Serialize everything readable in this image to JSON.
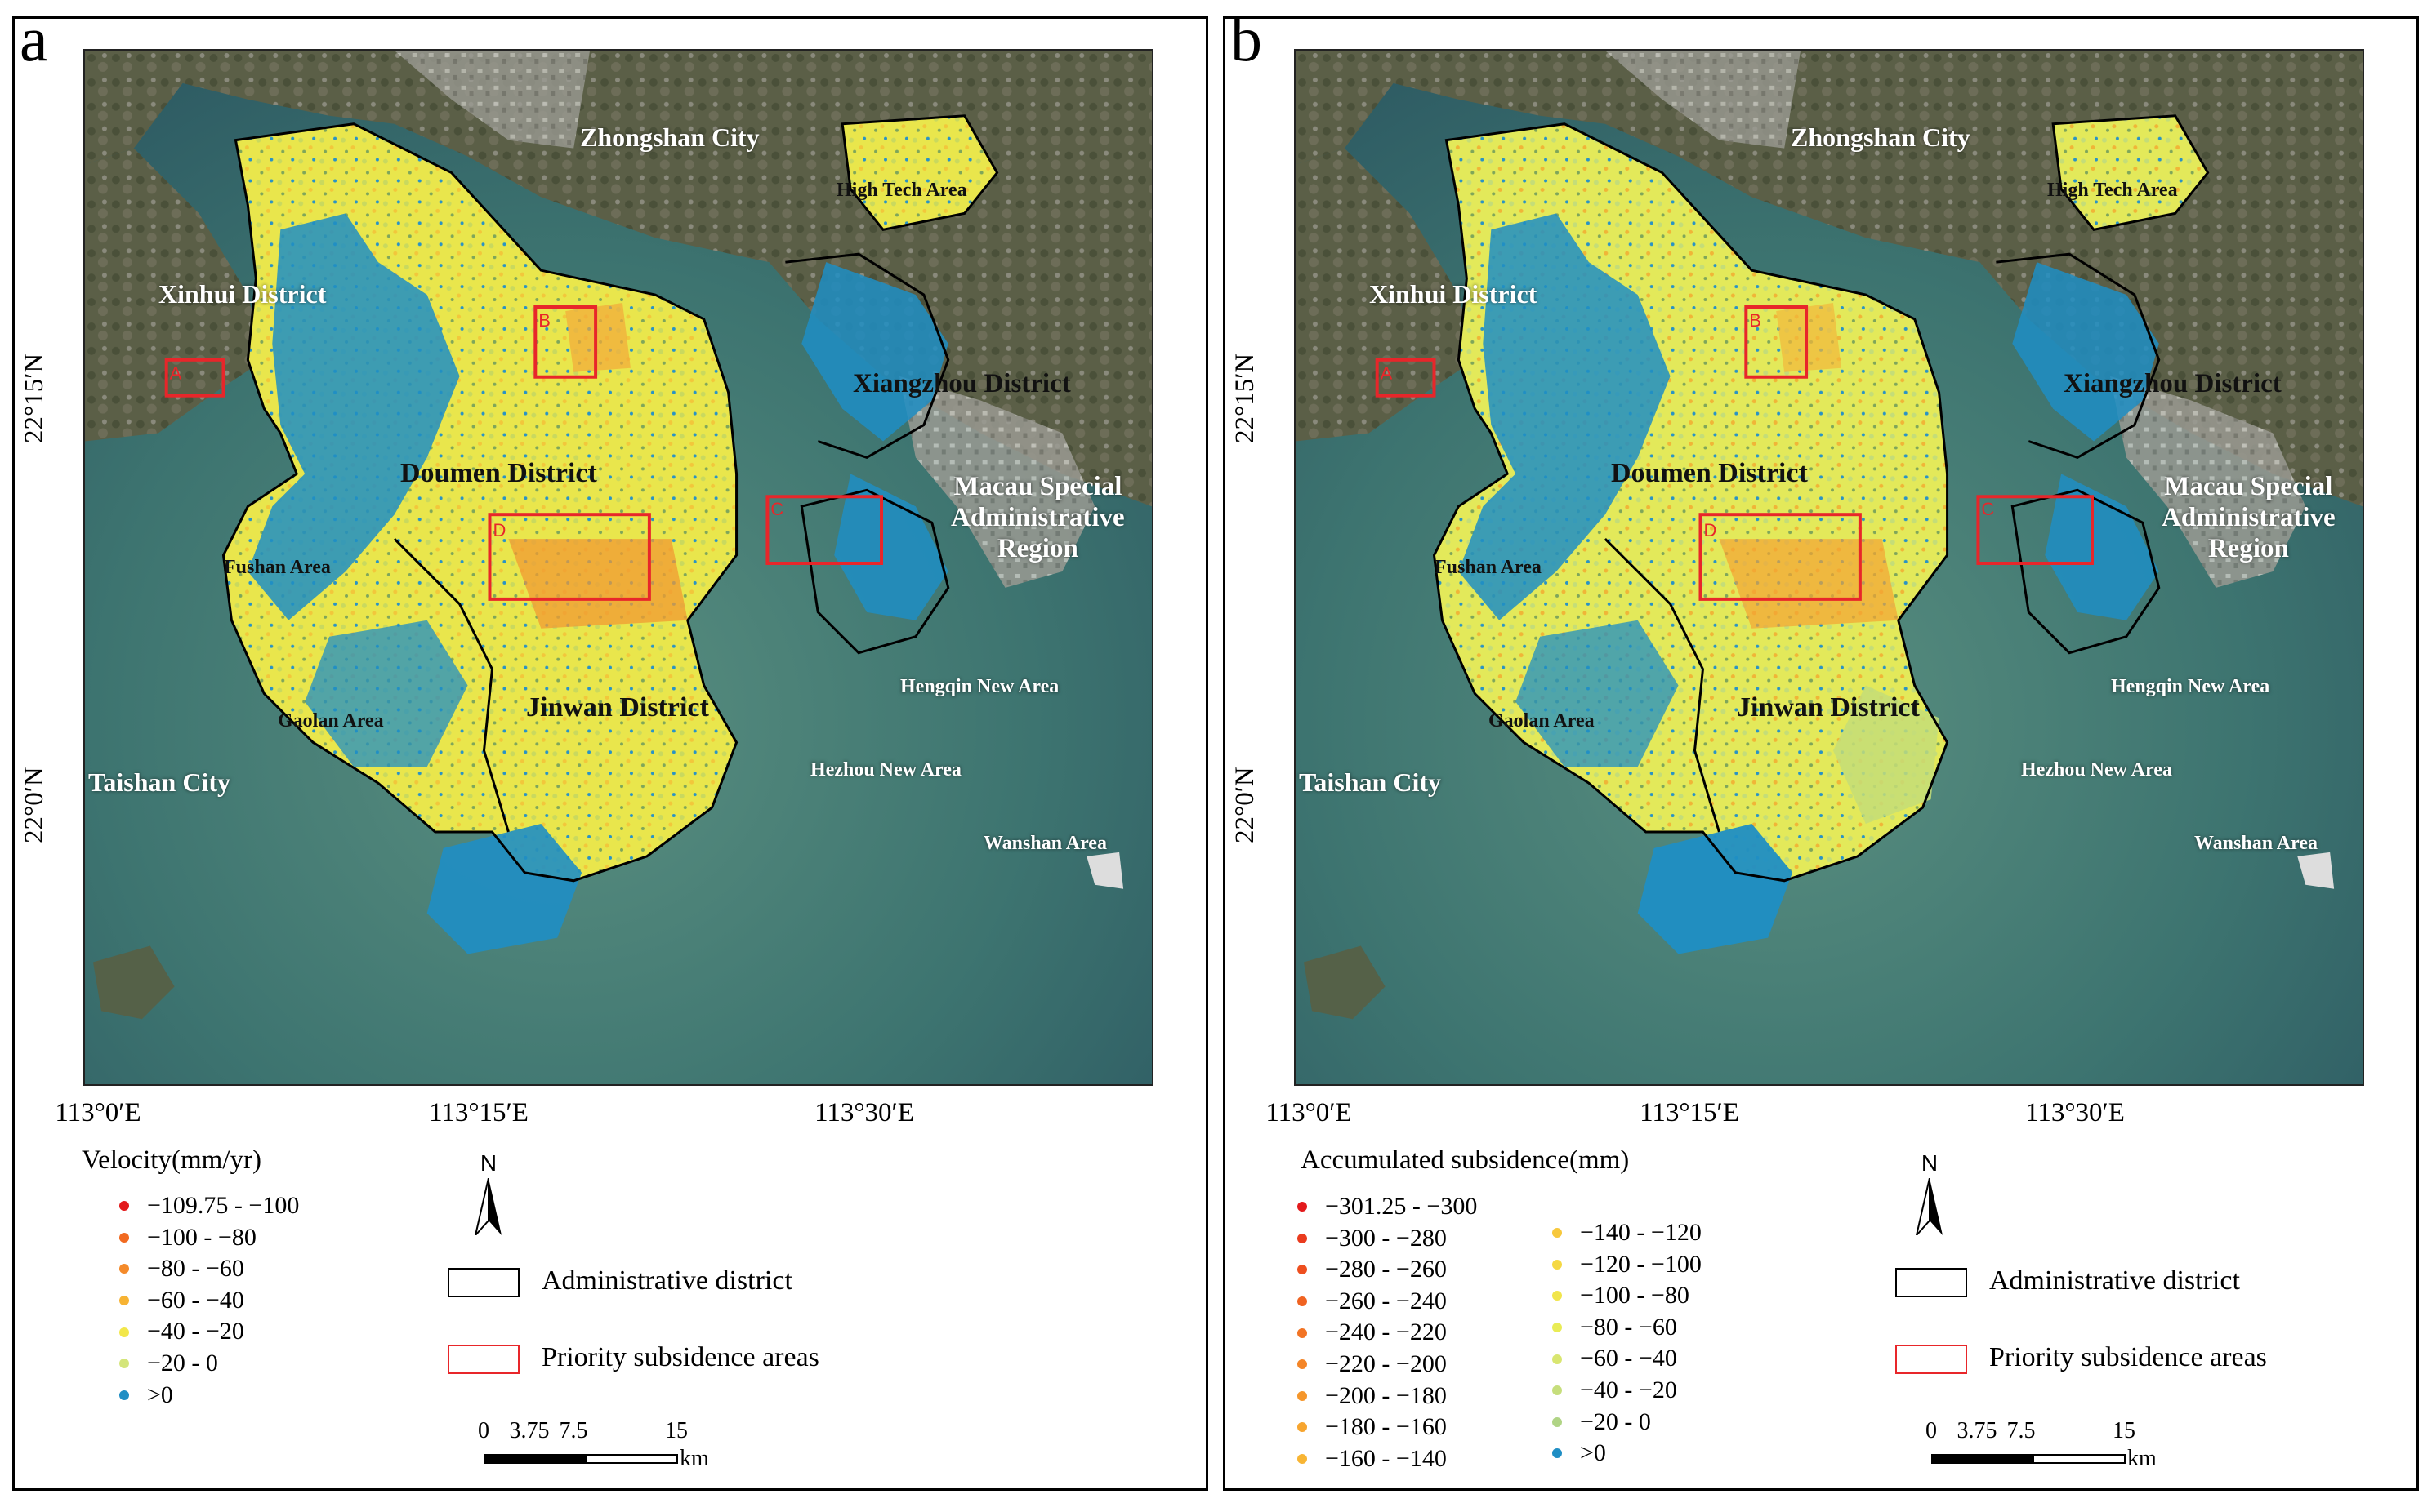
{
  "panels": {
    "a": {
      "letter": "a",
      "legend_title": "Velocity(mm/yr)"
    },
    "b": {
      "letter": "b",
      "legend_title": "Accumulated subsidence(mm)"
    }
  },
  "axes": {
    "lon_labels": [
      "113°0′E",
      "113°15′E",
      "113°30′E"
    ],
    "lat_labels": [
      "22°15′N",
      "22°0′N"
    ]
  },
  "places": {
    "zhongshan": "Zhongshan City",
    "high_tech": "High Tech Area",
    "xinhui": "Xinhui District",
    "xiangzhou": "Xiangzhou District",
    "macau": "Macau Special Administrative Region",
    "macau_l1": "Macau Special",
    "macau_l2": "Administrative",
    "macau_l3": "Region",
    "doumen": "Doumen District",
    "fushan": "Fushan Area",
    "jinwan": "Jinwan District",
    "hengqin": "Hengqin New Area",
    "gaolan": "Gaolan Area",
    "taishan": "Taishan City",
    "hezhou": "Hezhou New Area",
    "wanshan": "Wanshan Area"
  },
  "priority_areas": [
    "A",
    "B",
    "C",
    "D"
  ],
  "legend_a": [
    {
      "label": "−109.75 - −100",
      "color": "#e31a1c"
    },
    {
      "label": "−100 - −80",
      "color": "#f16a20"
    },
    {
      "label": "−80 - −60",
      "color": "#f48a2a"
    },
    {
      "label": "−60 - −40",
      "color": "#f7b333"
    },
    {
      "label": "−40 - −20",
      "color": "#f2e74a"
    },
    {
      "label": "−20 - 0",
      "color": "#d4e57a"
    },
    {
      "label": ">0",
      "color": "#1f8ec4"
    }
  ],
  "legend_b_col1": [
    {
      "label": "−301.25 - −300",
      "color": "#e31a1c"
    },
    {
      "label": "−300 - −280",
      "color": "#ea3b1e"
    },
    {
      "label": "−280 - −260",
      "color": "#ee4f1f"
    },
    {
      "label": "−260 - −240",
      "color": "#f06321"
    },
    {
      "label": "−240 - −220",
      "color": "#f27424"
    },
    {
      "label": "−220 - −200",
      "color": "#f48527"
    },
    {
      "label": "−200 - −180",
      "color": "#f5962b"
    },
    {
      "label": "−180 - −160",
      "color": "#f7a52f"
    },
    {
      "label": "−160 - −140",
      "color": "#f8b534"
    }
  ],
  "legend_b_col2": [
    {
      "label": "−140 - −120",
      "color": "#f7c83c"
    },
    {
      "label": "−120 - −100",
      "color": "#f5d843"
    },
    {
      "label": "−100 - −80",
      "color": "#f1e54b"
    },
    {
      "label": "−80 - −60",
      "color": "#e9ec55"
    },
    {
      "label": "−60 - −40",
      "color": "#d9e670"
    },
    {
      "label": "−40 - −20",
      "color": "#c6de7c"
    },
    {
      "label": "−20 - 0",
      "color": "#b0d485"
    },
    {
      "label": ">0",
      "color": "#1f8ec4"
    }
  ],
  "symbols": {
    "north": "N",
    "admin_label": "Administrative district",
    "priority_label": "Priority subsidence areas"
  },
  "scale": {
    "ticks": [
      "0",
      "3.75",
      "7.5",
      "15"
    ],
    "unit": "km"
  },
  "colors": {
    "admin_border": "#000000",
    "priority_border": "#e8262a",
    "sea": "#3f7672",
    "land": "#5d6248",
    "uplift": "#1f8ec4",
    "subsidence_low": "#eded56"
  }
}
